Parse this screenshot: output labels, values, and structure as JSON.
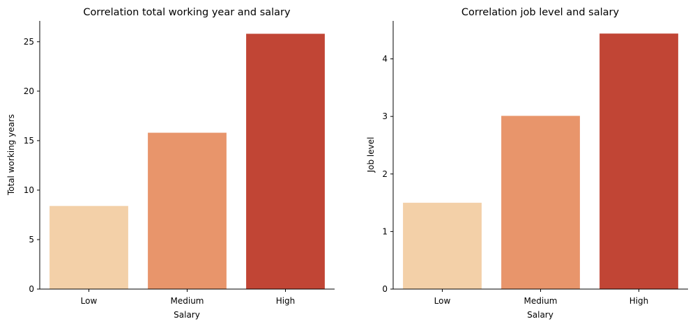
{
  "chart_data": [
    {
      "type": "bar",
      "title": "Correlation total working year and salary",
      "xlabel": "Salary",
      "ylabel": "Total working years",
      "categories": [
        "Low",
        "Medium",
        "High"
      ],
      "values": [
        8.4,
        15.8,
        25.8
      ],
      "colors": [
        "#f3d0a8",
        "#e8956b",
        "#c14535"
      ],
      "yticks": [
        0,
        5,
        10,
        15,
        20,
        25
      ],
      "ylim": [
        0,
        27.1
      ],
      "grid": false,
      "legend": "none"
    },
    {
      "type": "bar",
      "title": "Correlation job level and salary",
      "xlabel": "Salary",
      "ylabel": "Job level",
      "categories": [
        "Low",
        "Medium",
        "High"
      ],
      "values": [
        1.5,
        3.01,
        4.44
      ],
      "colors": [
        "#f3d0a8",
        "#e8956b",
        "#c14535"
      ],
      "yticks": [
        0,
        1,
        2,
        3,
        4
      ],
      "ylim": [
        0,
        4.66
      ],
      "grid": false,
      "legend": "none"
    }
  ]
}
